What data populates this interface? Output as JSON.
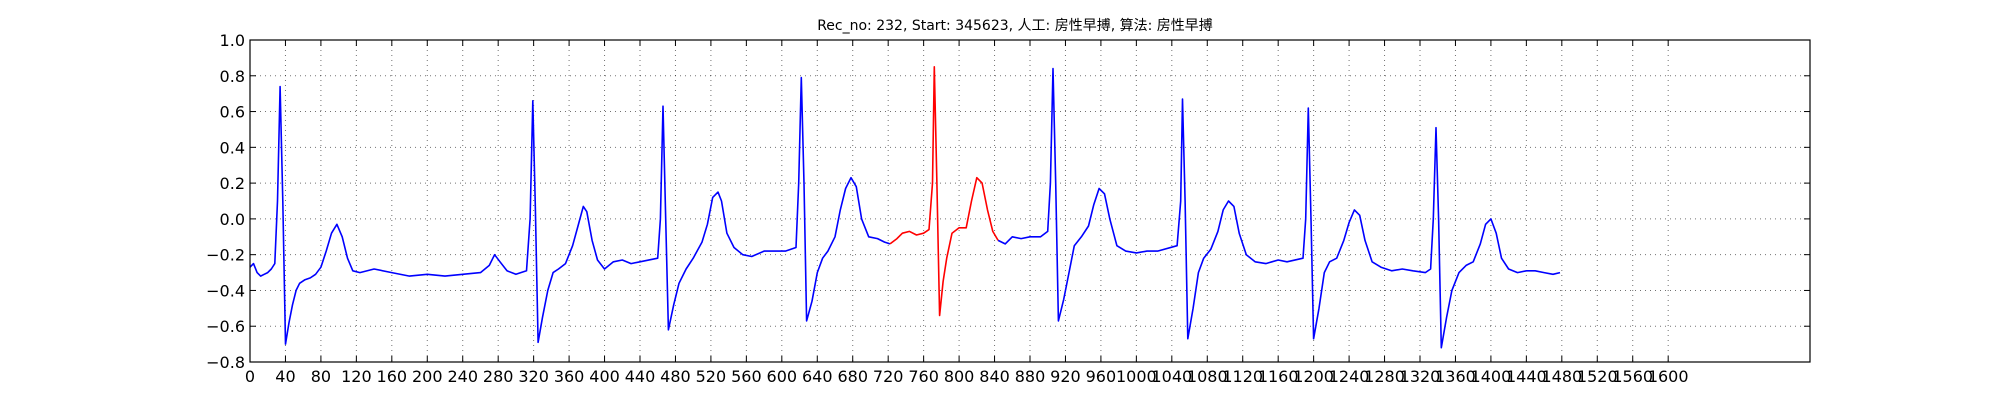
{
  "chart_data": {
    "type": "line",
    "title": "Rec_no: 232, Start: 345623, 人工: 房性早搏, 算法: 房性早搏",
    "xlabel": "",
    "ylabel": "",
    "xlim": [
      0,
      1760
    ],
    "ylim": [
      -0.8,
      1.0
    ],
    "grid": true,
    "yticks": [
      1.0,
      0.8,
      0.6,
      0.4,
      0.2,
      0.0,
      -0.2,
      -0.4,
      -0.6,
      -0.8
    ],
    "ytick_labels": [
      "1.0",
      "0.8",
      "0.6",
      "0.4",
      "0.2",
      "0.0",
      "−0.2",
      "−0.4",
      "−0.6",
      "−0.8"
    ],
    "xticks": [
      0,
      40,
      80,
      120,
      160,
      200,
      240,
      280,
      320,
      360,
      400,
      440,
      480,
      520,
      560,
      600,
      640,
      680,
      720,
      760,
      800,
      840,
      880,
      920,
      960,
      1000,
      1040,
      1080,
      1120,
      1160,
      1200,
      1240,
      1280,
      1320,
      1360,
      1400,
      1440,
      1480,
      1520,
      1560,
      1600
    ],
    "xtick_labels": [
      "0",
      "40",
      "80",
      "120",
      "160",
      "200",
      "240",
      "280",
      "320",
      "360",
      "400",
      "440",
      "480",
      "520",
      "560",
      "600",
      "640",
      "680",
      "720",
      "760",
      "800",
      "840",
      "880",
      "920",
      "960",
      "1000",
      "1040",
      "1080",
      "1120",
      "1160",
      "1200",
      "1240",
      "1280",
      "1320",
      "1360",
      "1400",
      "1440",
      "1480",
      "1520",
      "1560",
      "1600"
    ],
    "colors": {
      "normal": "#0000ff",
      "highlight": "#ff0000"
    },
    "series": [
      {
        "color": "normal",
        "points": [
          [
            0,
            -0.27
          ],
          [
            4,
            -0.25
          ],
          [
            8,
            -0.3
          ],
          [
            12,
            -0.32
          ],
          [
            16,
            -0.31
          ],
          [
            20,
            -0.3
          ],
          [
            24,
            -0.28
          ],
          [
            28,
            -0.25
          ],
          [
            31,
            0.1
          ],
          [
            34,
            0.74
          ],
          [
            37,
            0.1
          ],
          [
            40,
            -0.7
          ],
          [
            44,
            -0.58
          ],
          [
            48,
            -0.48
          ],
          [
            52,
            -0.4
          ],
          [
            56,
            -0.36
          ],
          [
            62,
            -0.34
          ],
          [
            68,
            -0.33
          ],
          [
            74,
            -0.31
          ],
          [
            80,
            -0.27
          ],
          [
            86,
            -0.18
          ],
          [
            92,
            -0.08
          ],
          [
            98,
            -0.03
          ],
          [
            104,
            -0.1
          ],
          [
            110,
            -0.22
          ],
          [
            116,
            -0.29
          ],
          [
            124,
            -0.3
          ],
          [
            140,
            -0.28
          ],
          [
            160,
            -0.3
          ],
          [
            180,
            -0.32
          ],
          [
            200,
            -0.31
          ],
          [
            220,
            -0.32
          ],
          [
            240,
            -0.31
          ],
          [
            260,
            -0.3
          ],
          [
            270,
            -0.26
          ],
          [
            276,
            -0.2
          ],
          [
            282,
            -0.24
          ],
          [
            290,
            -0.29
          ],
          [
            300,
            -0.31
          ],
          [
            312,
            -0.29
          ],
          [
            316,
            0.0
          ],
          [
            319,
            0.66
          ],
          [
            322,
            0.05
          ],
          [
            325,
            -0.69
          ],
          [
            330,
            -0.55
          ],
          [
            336,
            -0.4
          ],
          [
            342,
            -0.3
          ],
          [
            348,
            -0.28
          ],
          [
            356,
            -0.25
          ],
          [
            364,
            -0.15
          ],
          [
            370,
            -0.04
          ],
          [
            376,
            0.07
          ],
          [
            380,
            0.04
          ],
          [
            386,
            -0.12
          ],
          [
            392,
            -0.23
          ],
          [
            400,
            -0.28
          ],
          [
            410,
            -0.24
          ],
          [
            420,
            -0.23
          ],
          [
            430,
            -0.25
          ],
          [
            440,
            -0.24
          ],
          [
            460,
            -0.22
          ],
          [
            463,
            0.0
          ],
          [
            466,
            0.63
          ],
          [
            469,
            0.0
          ],
          [
            472,
            -0.62
          ],
          [
            478,
            -0.48
          ],
          [
            484,
            -0.36
          ],
          [
            492,
            -0.28
          ],
          [
            500,
            -0.22
          ],
          [
            510,
            -0.13
          ],
          [
            516,
            -0.03
          ],
          [
            522,
            0.12
          ],
          [
            528,
            0.15
          ],
          [
            532,
            0.1
          ],
          [
            538,
            -0.08
          ],
          [
            546,
            -0.16
          ],
          [
            556,
            -0.2
          ],
          [
            566,
            -0.21
          ],
          [
            580,
            -0.18
          ],
          [
            590,
            -0.18
          ],
          [
            604,
            -0.18
          ],
          [
            616,
            -0.16
          ],
          [
            619,
            0.2
          ],
          [
            622,
            0.79
          ],
          [
            625,
            0.2
          ],
          [
            628,
            -0.57
          ],
          [
            634,
            -0.46
          ],
          [
            640,
            -0.3
          ],
          [
            646,
            -0.22
          ],
          [
            652,
            -0.18
          ],
          [
            660,
            -0.1
          ],
          [
            666,
            0.05
          ],
          [
            672,
            0.17
          ],
          [
            678,
            0.23
          ],
          [
            684,
            0.18
          ],
          [
            690,
            0.0
          ],
          [
            698,
            -0.1
          ],
          [
            708,
            -0.11
          ],
          [
            716,
            -0.13
          ],
          [
            722,
            -0.14
          ]
        ]
      },
      {
        "color": "highlight",
        "points": [
          [
            722,
            -0.14
          ],
          [
            730,
            -0.11
          ],
          [
            736,
            -0.08
          ],
          [
            744,
            -0.07
          ],
          [
            752,
            -0.09
          ],
          [
            760,
            -0.08
          ],
          [
            766,
            -0.06
          ],
          [
            770,
            0.2
          ],
          [
            772,
            0.85
          ],
          [
            775,
            0.2
          ],
          [
            778,
            -0.54
          ],
          [
            782,
            -0.35
          ],
          [
            786,
            -0.22
          ],
          [
            792,
            -0.08
          ],
          [
            800,
            -0.05
          ],
          [
            808,
            -0.05
          ],
          [
            814,
            0.1
          ],
          [
            820,
            0.23
          ],
          [
            826,
            0.2
          ],
          [
            832,
            0.05
          ],
          [
            838,
            -0.07
          ],
          [
            844,
            -0.12
          ]
        ]
      },
      {
        "color": "normal",
        "points": [
          [
            844,
            -0.12
          ],
          [
            852,
            -0.14
          ],
          [
            860,
            -0.1
          ],
          [
            870,
            -0.11
          ],
          [
            880,
            -0.1
          ],
          [
            892,
            -0.1
          ],
          [
            900,
            -0.07
          ],
          [
            903,
            0.2
          ],
          [
            906,
            0.84
          ],
          [
            909,
            0.2
          ],
          [
            912,
            -0.57
          ],
          [
            918,
            -0.45
          ],
          [
            924,
            -0.3
          ],
          [
            930,
            -0.15
          ],
          [
            938,
            -0.1
          ],
          [
            946,
            -0.04
          ],
          [
            952,
            0.08
          ],
          [
            958,
            0.17
          ],
          [
            964,
            0.14
          ],
          [
            970,
            0.0
          ],
          [
            978,
            -0.15
          ],
          [
            988,
            -0.18
          ],
          [
            1000,
            -0.19
          ],
          [
            1012,
            -0.18
          ],
          [
            1024,
            -0.18
          ],
          [
            1046,
            -0.15
          ],
          [
            1050,
            0.1
          ],
          [
            1052,
            0.67
          ],
          [
            1055,
            0.1
          ],
          [
            1058,
            -0.67
          ],
          [
            1064,
            -0.5
          ],
          [
            1070,
            -0.3
          ],
          [
            1076,
            -0.22
          ],
          [
            1084,
            -0.17
          ],
          [
            1092,
            -0.07
          ],
          [
            1098,
            0.05
          ],
          [
            1104,
            0.1
          ],
          [
            1110,
            0.07
          ],
          [
            1116,
            -0.08
          ],
          [
            1124,
            -0.2
          ],
          [
            1134,
            -0.24
          ],
          [
            1146,
            -0.25
          ],
          [
            1160,
            -0.23
          ],
          [
            1170,
            -0.24
          ],
          [
            1188,
            -0.22
          ],
          [
            1191,
            0.0
          ],
          [
            1194,
            0.62
          ],
          [
            1197,
            0.0
          ],
          [
            1200,
            -0.67
          ],
          [
            1206,
            -0.5
          ],
          [
            1212,
            -0.3
          ],
          [
            1218,
            -0.24
          ],
          [
            1226,
            -0.22
          ],
          [
            1234,
            -0.12
          ],
          [
            1240,
            -0.02
          ],
          [
            1246,
            0.05
          ],
          [
            1252,
            0.02
          ],
          [
            1258,
            -0.12
          ],
          [
            1266,
            -0.24
          ],
          [
            1276,
            -0.27
          ],
          [
            1288,
            -0.29
          ],
          [
            1300,
            -0.28
          ],
          [
            1312,
            -0.29
          ],
          [
            1326,
            -0.3
          ],
          [
            1332,
            -0.28
          ],
          [
            1335,
            0.0
          ],
          [
            1338,
            0.51
          ],
          [
            1341,
            0.0
          ],
          [
            1344,
            -0.72
          ],
          [
            1350,
            -0.55
          ],
          [
            1356,
            -0.4
          ],
          [
            1364,
            -0.3
          ],
          [
            1372,
            -0.26
          ],
          [
            1380,
            -0.24
          ],
          [
            1388,
            -0.14
          ],
          [
            1394,
            -0.03
          ],
          [
            1400,
            0.0
          ],
          [
            1406,
            -0.08
          ],
          [
            1412,
            -0.22
          ],
          [
            1420,
            -0.28
          ],
          [
            1430,
            -0.3
          ],
          [
            1440,
            -0.29
          ],
          [
            1450,
            -0.29
          ],
          [
            1460,
            -0.3
          ],
          [
            1470,
            -0.31
          ],
          [
            1478,
            -0.3
          ]
        ]
      }
    ]
  }
}
